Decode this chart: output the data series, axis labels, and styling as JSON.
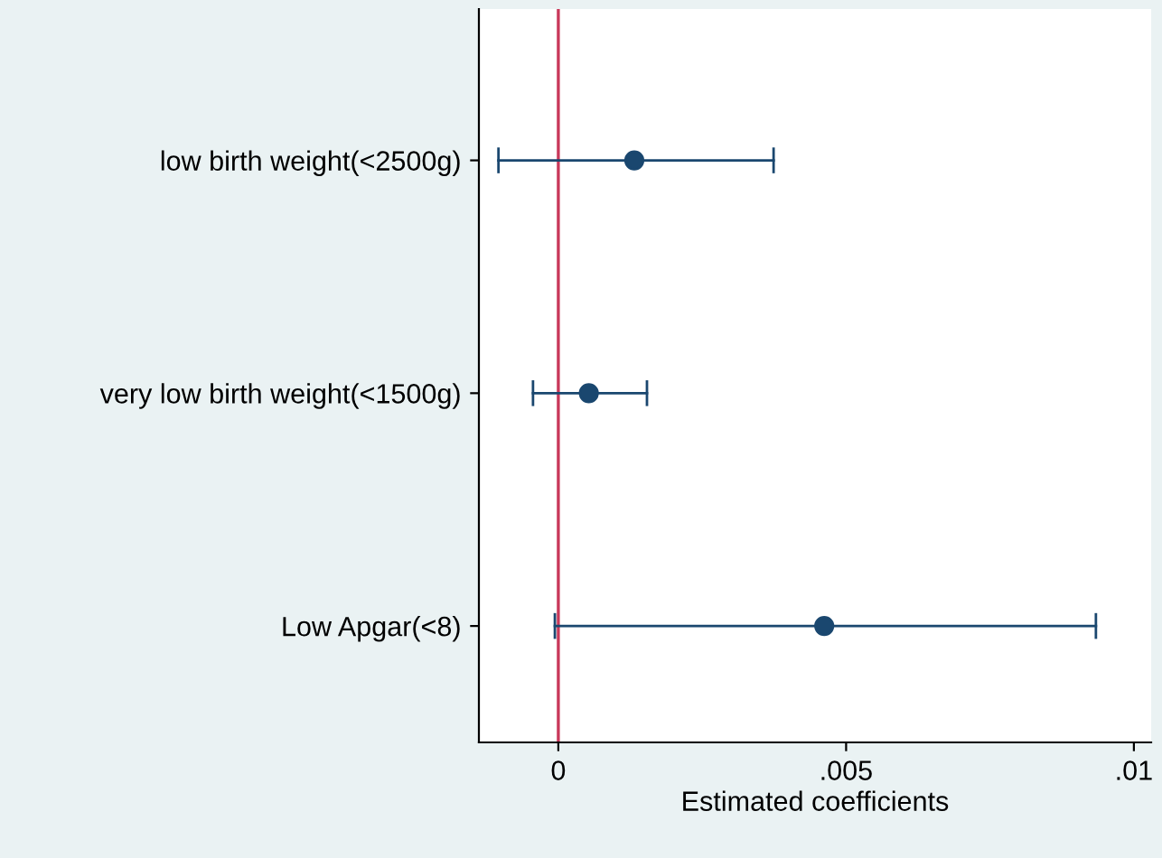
{
  "chart_data": {
    "type": "scatter",
    "orientation": "horizontal",
    "categories": [
      "low birth weight(<2500g)",
      "very low birth weight(<1500g)",
      "Low Apgar(<8)"
    ],
    "values": [
      0.00132,
      0.00053,
      0.00462
    ],
    "errors": [
      [
        -0.00104,
        0.00374
      ],
      [
        -0.00044,
        0.00154
      ],
      [
        -6e-05,
        0.00934
      ]
    ],
    "color": "#1a476f",
    "marker": "circle",
    "xlabel": "Estimated coefficients",
    "xlim": [
      -0.00138,
      0.0103
    ],
    "xticks": [
      {
        "value": 0,
        "label": "0"
      },
      {
        "value": 0.005,
        "label": ".005"
      },
      {
        "value": 0.01,
        "label": ".01"
      }
    ],
    "ref_lines": [
      {
        "axis": "x",
        "value": 0,
        "color": "#c8385a"
      }
    ],
    "grid": false,
    "legend": false
  }
}
